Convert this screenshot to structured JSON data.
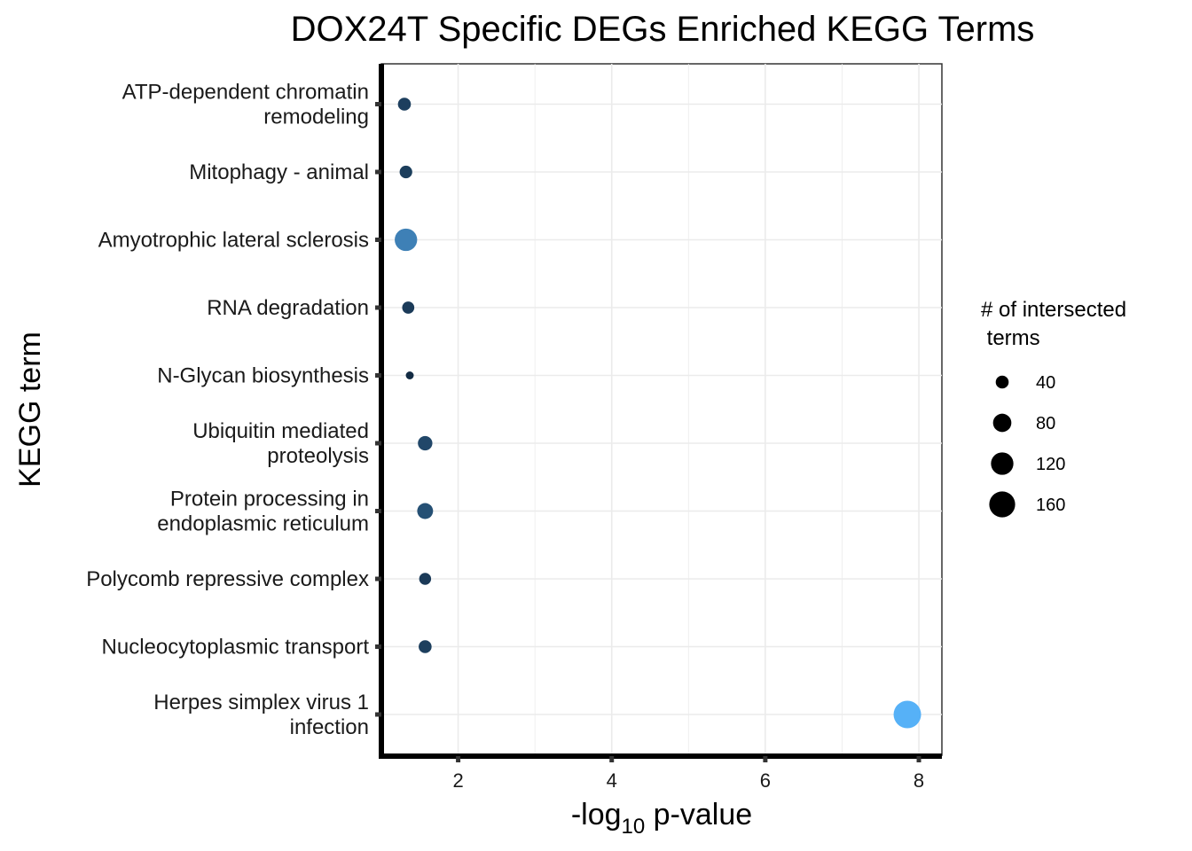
{
  "chart_data": {
    "type": "scatter",
    "title": "DOX24T Specific DEGs Enriched KEGG Terms",
    "xlabel": {
      "prefix": "-log",
      "subscript": "10",
      "suffix": " p-value"
    },
    "ylabel": "KEGG term",
    "xlim": [
      1.0,
      8.3
    ],
    "xticks": [
      2,
      4,
      6,
      8
    ],
    "grid": true,
    "color_scale": {
      "low": "#132B43",
      "high": "#56B1F7"
    },
    "points": [
      {
        "term_lines": [
          "ATP-dependent chromatin",
          "remodeling"
        ],
        "x": 1.3,
        "count": 40
      },
      {
        "term_lines": [
          "Mitophagy - animal"
        ],
        "x": 1.32,
        "count": 38
      },
      {
        "term_lines": [
          "Amyotrophic lateral sclerosis"
        ],
        "x": 1.32,
        "count": 120
      },
      {
        "term_lines": [
          "RNA degradation"
        ],
        "x": 1.35,
        "count": 35
      },
      {
        "term_lines": [
          "N-Glycan biosynthesis"
        ],
        "x": 1.37,
        "count": 15
      },
      {
        "term_lines": [
          "Ubiquitin mediated",
          "proteolysis"
        ],
        "x": 1.57,
        "count": 50
      },
      {
        "term_lines": [
          "Protein processing in",
          "endoplasmic reticulum"
        ],
        "x": 1.57,
        "count": 60
      },
      {
        "term_lines": [
          "Polycomb repressive complex"
        ],
        "x": 1.57,
        "count": 34
      },
      {
        "term_lines": [
          "Nucleocytoplasmic transport"
        ],
        "x": 1.57,
        "count": 40
      },
      {
        "term_lines": [
          "Herpes simplex virus 1",
          "infection"
        ],
        "x": 7.85,
        "count": 180
      }
    ],
    "legend": {
      "title_lines": [
        "# of intersected",
        " terms"
      ],
      "position": "right",
      "sizes": [
        40,
        80,
        120,
        160
      ],
      "labels": [
        "40",
        "80",
        "120",
        "160"
      ]
    }
  }
}
